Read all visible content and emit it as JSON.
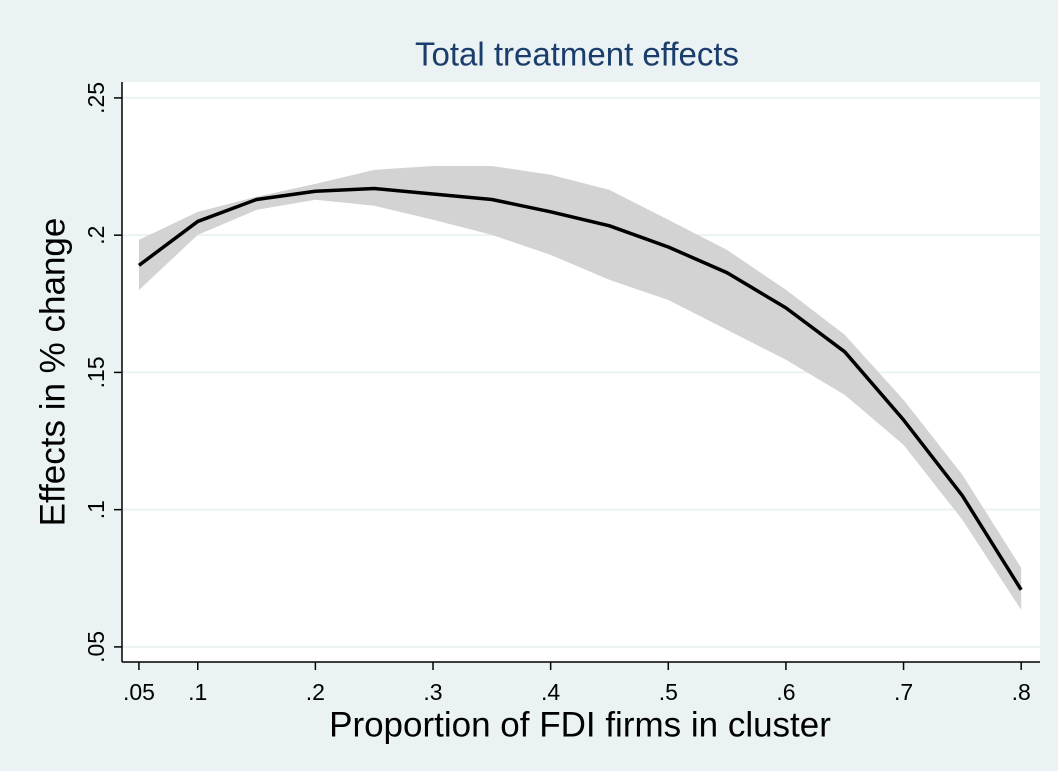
{
  "chart_data": {
    "type": "line",
    "title": "Total treatment effects",
    "x_label": "Proportion of FDI firms in cluster",
    "y_label": "Effects in % change",
    "x": [
      0.05,
      0.1,
      0.15,
      0.2,
      0.25,
      0.3,
      0.35,
      0.4,
      0.45,
      0.5,
      0.55,
      0.6,
      0.65,
      0.7,
      0.75,
      0.8
    ],
    "values": [
      0.189,
      0.205,
      0.213,
      0.216,
      0.217,
      0.215,
      0.213,
      0.2085,
      0.2034,
      0.1957,
      0.1863,
      0.1735,
      0.1575,
      0.1327,
      0.1051,
      0.0708
    ],
    "color": "#000000",
    "band": {
      "upper": [
        0.1983,
        0.2085,
        0.214,
        0.2187,
        0.2238,
        0.2252,
        0.2252,
        0.222,
        0.2165,
        0.2056,
        0.1946,
        0.1801,
        0.1637,
        0.14,
        0.1127,
        0.0788
      ],
      "lower": [
        0.18,
        0.2001,
        0.2092,
        0.2129,
        0.2107,
        0.2056,
        0.2001,
        0.1928,
        0.1837,
        0.1764,
        0.1655,
        0.1546,
        0.1418,
        0.1236,
        0.0963,
        0.0635
      ],
      "color": "#d3d3d3"
    },
    "xlim": [
      0.0356,
      0.816
    ],
    "ylim": [
      0.0445,
      0.2558
    ],
    "xticks": [
      {
        "value": 0.05,
        "label": ".05"
      },
      {
        "value": 0.1,
        "label": ".1"
      },
      {
        "value": 0.2,
        "label": ".2"
      },
      {
        "value": 0.3,
        "label": ".3"
      },
      {
        "value": 0.4,
        "label": ".4"
      },
      {
        "value": 0.5,
        "label": ".5"
      },
      {
        "value": 0.6,
        "label": ".6"
      },
      {
        "value": 0.7,
        "label": ".7"
      },
      {
        "value": 0.8,
        "label": ".8"
      }
    ],
    "yticks": [
      {
        "value": 0.05,
        "label": ".05"
      },
      {
        "value": 0.1,
        "label": ".1"
      },
      {
        "value": 0.15,
        "label": ".15"
      },
      {
        "value": 0.2,
        "label": ".2"
      },
      {
        "value": 0.25,
        "label": ".25"
      }
    ],
    "grid": true
  }
}
